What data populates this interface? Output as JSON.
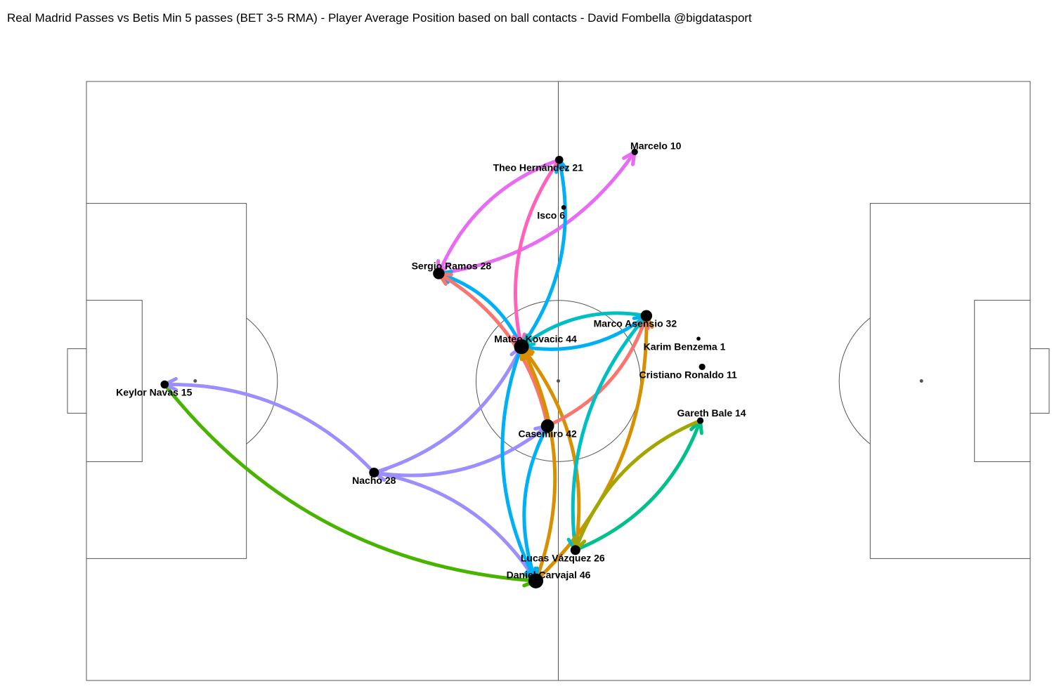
{
  "title": "Real Madrid Passes vs Betis Min 5 passes (BET 3-5 RMA) - Player Average Position based on ball contacts  - David Fombella @bigdatasport",
  "chart_data": {
    "type": "pass-network",
    "title": "Real Madrid Passes vs Betis Min 5 passes (BET 3-5 RMA) - Player Average Position based on ball contacts  - David Fombella @bigdatasport",
    "pitch": {
      "length": 105,
      "width": 68
    },
    "players": [
      {
        "id": "navas",
        "label": "Keylor Navas 15",
        "x": 8.7,
        "y": 33.6,
        "size": 3
      },
      {
        "id": "nacho",
        "label": "Nacho 28",
        "x": 32.0,
        "y": 23.6,
        "size": 4
      },
      {
        "id": "ramos",
        "label": "Sergio Ramos 28",
        "x": 39.2,
        "y": 46.2,
        "size": 5
      },
      {
        "id": "theo",
        "label": "Theo Hernández 21",
        "x": 52.6,
        "y": 59.1,
        "size": 3
      },
      {
        "id": "isco",
        "label": "Isco 6",
        "x": 53.1,
        "y": 53.7,
        "size": 1
      },
      {
        "id": "marcelo",
        "label": "Marcelo 10",
        "x": 61.0,
        "y": 60.0,
        "size": 2
      },
      {
        "id": "kovacic",
        "label": "Mateo Kovacic 44",
        "x": 48.4,
        "y": 37.9,
        "size": 7
      },
      {
        "id": "casemiro",
        "label": "Casemiro 42",
        "x": 51.3,
        "y": 28.9,
        "size": 6
      },
      {
        "id": "asensio",
        "label": "Marco Asensio 32",
        "x": 62.3,
        "y": 41.4,
        "size": 5
      },
      {
        "id": "benzema",
        "label": "Karim Benzema 1",
        "x": 68.1,
        "y": 38.8,
        "size": 0.5
      },
      {
        "id": "ronaldo",
        "label": "Cristiano Ronaldo 11",
        "x": 68.5,
        "y": 35.6,
        "size": 2
      },
      {
        "id": "bale",
        "label": "Gareth Bale 14",
        "x": 68.3,
        "y": 29.5,
        "size": 2
      },
      {
        "id": "vazquez",
        "label": "Lucas Vázquez 26",
        "x": 54.4,
        "y": 14.8,
        "size": 4
      },
      {
        "id": "carvajal",
        "label": "Daniel Carvajal 46",
        "x": 50.0,
        "y": 11.3,
        "size": 7
      }
    ],
    "passes": [
      {
        "from": "navas",
        "to": "carvajal",
        "color": "#49b400"
      },
      {
        "from": "nacho",
        "to": "navas",
        "color": "#9b8fff"
      },
      {
        "from": "carvajal",
        "to": "nacho",
        "color": "#9b8fff"
      },
      {
        "from": "nacho",
        "to": "kovacic",
        "color": "#9b8fff"
      },
      {
        "from": "nacho",
        "to": "casemiro",
        "color": "#9b8fff"
      },
      {
        "from": "ramos",
        "to": "marcelo",
        "color": "#e76bf3"
      },
      {
        "from": "theo",
        "to": "ramos",
        "color": "#e76bf3"
      },
      {
        "from": "kovacic",
        "to": "ramos",
        "color": "#00b0f6"
      },
      {
        "from": "kovacic",
        "to": "theo",
        "color": "#00b0f6"
      },
      {
        "from": "theo",
        "to": "kovacic",
        "color": "#ff62bc"
      },
      {
        "from": "kovacic",
        "to": "asensio",
        "color": "#00b0f6"
      },
      {
        "from": "asensio",
        "to": "kovacic",
        "color": "#00bfc4"
      },
      {
        "from": "casemiro",
        "to": "ramos",
        "color": "#f8766d"
      },
      {
        "from": "kovacic",
        "to": "carvajal",
        "color": "#00b0f6"
      },
      {
        "from": "carvajal",
        "to": "kovacic",
        "color": "#d89000"
      },
      {
        "from": "vazquez",
        "to": "kovacic",
        "color": "#d89000"
      },
      {
        "from": "carvajal",
        "to": "asensio",
        "color": "#d89000"
      },
      {
        "from": "casemiro",
        "to": "asensio",
        "color": "#f8766d"
      },
      {
        "from": "asensio",
        "to": "vazquez",
        "color": "#00bfc4"
      },
      {
        "from": "vazquez",
        "to": "bale",
        "color": "#00c08b"
      },
      {
        "from": "bale",
        "to": "vazquez",
        "color": "#a3a500"
      },
      {
        "from": "casemiro",
        "to": "carvajal",
        "color": "#00b0f6"
      }
    ]
  }
}
